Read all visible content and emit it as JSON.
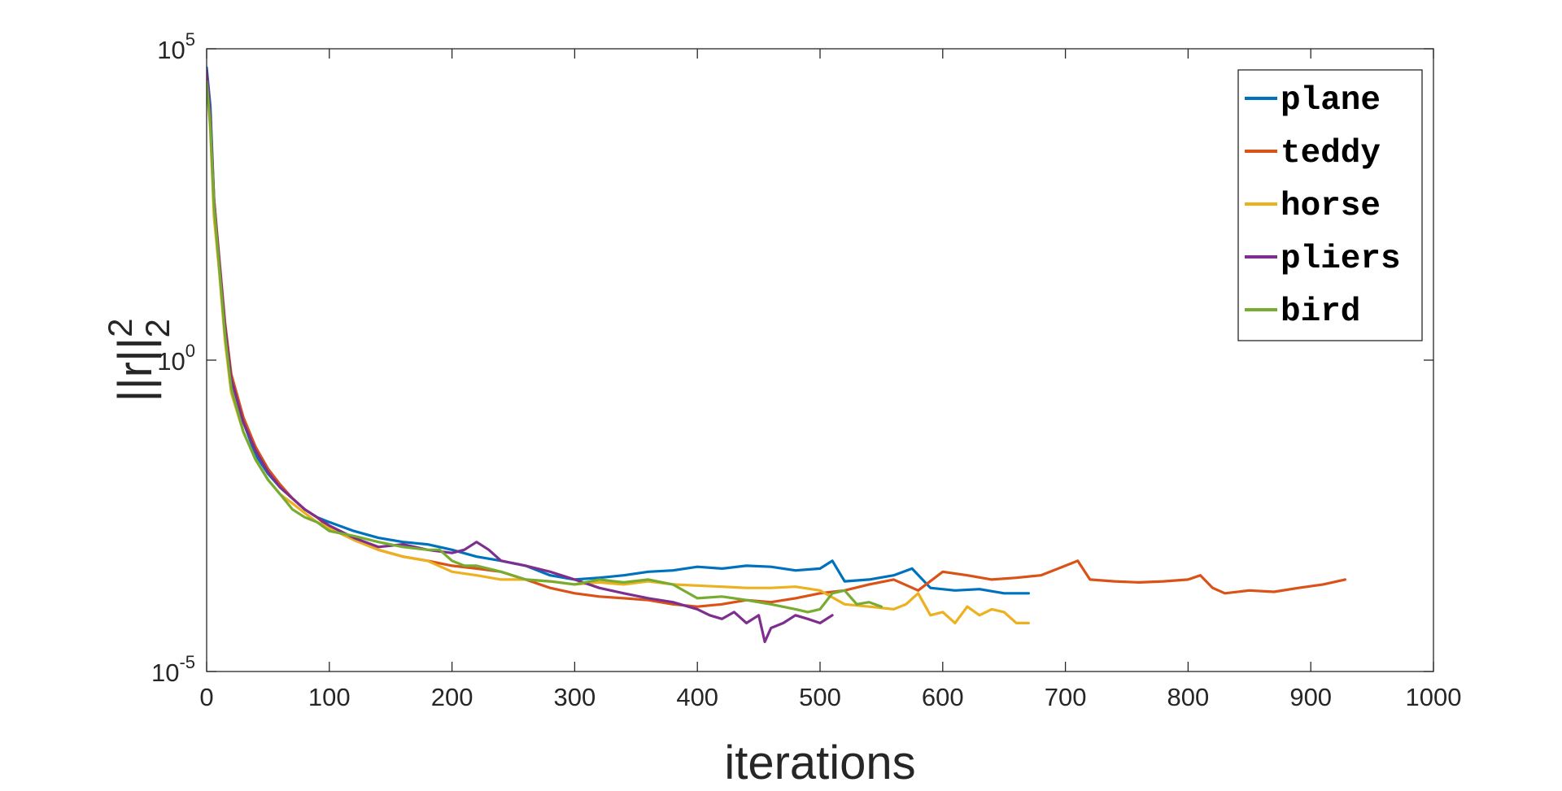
{
  "chart_data": {
    "type": "line",
    "title": "",
    "xlabel": "iterations",
    "ylabel": "||r||",
    "ylabel_superscript": "2",
    "ylabel_subscript": "2",
    "xlim": [
      0,
      1000
    ],
    "ylim": [
      1e-05,
      100000.0
    ],
    "yscale": "log",
    "grid": false,
    "legend_position": "top-right",
    "xticks": [
      {
        "value": 0,
        "label": "0"
      },
      {
        "value": 100,
        "label": "100"
      },
      {
        "value": 200,
        "label": "200"
      },
      {
        "value": 300,
        "label": "300"
      },
      {
        "value": 400,
        "label": "400"
      },
      {
        "value": 500,
        "label": "500"
      },
      {
        "value": 600,
        "label": "600"
      },
      {
        "value": 700,
        "label": "700"
      },
      {
        "value": 800,
        "label": "800"
      },
      {
        "value": 900,
        "label": "900"
      },
      {
        "value": 1000,
        "label": "1000"
      }
    ],
    "yticks": [
      {
        "value": 1e-05,
        "base": "10",
        "exp": "-5"
      },
      {
        "value": 1,
        "base": "10",
        "exp": "0"
      },
      {
        "value": 100000.0,
        "base": "10",
        "exp": "5"
      }
    ],
    "series": [
      {
        "name": "plane",
        "color": "#0072BD",
        "x": [
          0,
          3,
          6,
          10,
          15,
          20,
          30,
          40,
          50,
          60,
          70,
          80,
          90,
          100,
          120,
          140,
          160,
          180,
          200,
          220,
          240,
          260,
          280,
          300,
          320,
          340,
          360,
          380,
          400,
          420,
          440,
          460,
          480,
          500,
          510,
          520,
          540,
          560,
          575,
          590,
          610,
          630,
          650,
          670
        ],
        "y": [
          50000,
          12000,
          400,
          40,
          3,
          0.5,
          0.1,
          0.03,
          0.015,
          0.009,
          0.006,
          0.004,
          0.003,
          0.0025,
          0.0018,
          0.0014,
          0.0012,
          0.0011,
          0.0009,
          0.0007,
          0.0006,
          0.0005,
          0.00035,
          0.0003,
          0.00032,
          0.00035,
          0.0004,
          0.00042,
          0.00048,
          0.00045,
          0.0005,
          0.00048,
          0.00042,
          0.00045,
          0.0006,
          0.00028,
          0.0003,
          0.00035,
          0.00045,
          0.00022,
          0.0002,
          0.00021,
          0.00018,
          0.00018
        ]
      },
      {
        "name": "teddy",
        "color": "#D95319",
        "x": [
          0,
          3,
          6,
          10,
          15,
          20,
          30,
          40,
          50,
          60,
          70,
          80,
          90,
          100,
          120,
          140,
          160,
          180,
          200,
          220,
          240,
          260,
          280,
          300,
          320,
          340,
          360,
          380,
          400,
          420,
          440,
          460,
          480,
          500,
          520,
          540,
          560,
          580,
          600,
          620,
          640,
          660,
          680,
          700,
          710,
          720,
          740,
          760,
          780,
          800,
          810,
          820,
          830,
          850,
          870,
          890,
          910,
          928
        ],
        "y": [
          40000,
          8000,
          400,
          50,
          4,
          0.6,
          0.12,
          0.04,
          0.018,
          0.01,
          0.006,
          0.004,
          0.003,
          0.002,
          0.0013,
          0.0009,
          0.0007,
          0.0006,
          0.0005,
          0.00045,
          0.0004,
          0.0003,
          0.00022,
          0.00018,
          0.00016,
          0.00015,
          0.00014,
          0.00012,
          0.00011,
          0.00012,
          0.00014,
          0.00013,
          0.00015,
          0.00018,
          0.0002,
          0.00025,
          0.0003,
          0.0002,
          0.0004,
          0.00035,
          0.0003,
          0.00032,
          0.00035,
          0.0005,
          0.0006,
          0.0003,
          0.00028,
          0.00027,
          0.00028,
          0.0003,
          0.00035,
          0.00022,
          0.00018,
          0.0002,
          0.00019,
          0.00022,
          0.00025,
          0.0003
        ]
      },
      {
        "name": "horse",
        "color": "#EDB120",
        "x": [
          0,
          3,
          6,
          10,
          15,
          20,
          30,
          40,
          50,
          60,
          70,
          80,
          90,
          100,
          120,
          140,
          160,
          180,
          200,
          220,
          240,
          260,
          280,
          300,
          320,
          340,
          360,
          380,
          400,
          420,
          440,
          460,
          480,
          500,
          520,
          540,
          560,
          570,
          580,
          590,
          600,
          610,
          620,
          630,
          640,
          650,
          660,
          670
        ],
        "y": [
          35000,
          5000,
          200,
          30,
          2,
          0.3,
          0.07,
          0.025,
          0.012,
          0.007,
          0.005,
          0.0035,
          0.0025,
          0.002,
          0.0013,
          0.0009,
          0.0007,
          0.0006,
          0.0004,
          0.00035,
          0.0003,
          0.0003,
          0.00028,
          0.00025,
          0.00027,
          0.00025,
          0.00028,
          0.00025,
          0.00024,
          0.00023,
          0.00022,
          0.00022,
          0.00023,
          0.0002,
          0.00012,
          0.00011,
          0.0001,
          0.00012,
          0.00018,
          8e-05,
          9e-05,
          6e-05,
          0.00011,
          8e-05,
          0.0001,
          9e-05,
          6e-05,
          6e-05
        ]
      },
      {
        "name": "pliers",
        "color": "#7E2F8E",
        "x": [
          0,
          3,
          6,
          10,
          15,
          20,
          30,
          40,
          50,
          60,
          70,
          80,
          90,
          100,
          120,
          140,
          160,
          180,
          200,
          210,
          220,
          230,
          240,
          260,
          280,
          300,
          320,
          340,
          360,
          380,
          400,
          410,
          420,
          430,
          440,
          450,
          455,
          460,
          470,
          480,
          490,
          500,
          510
        ],
        "y": [
          45000,
          9000,
          350,
          45,
          3.5,
          0.5,
          0.1,
          0.035,
          0.016,
          0.009,
          0.006,
          0.004,
          0.003,
          0.0022,
          0.0014,
          0.001,
          0.0011,
          0.0009,
          0.0008,
          0.0009,
          0.0012,
          0.0009,
          0.0006,
          0.0005,
          0.0004,
          0.0003,
          0.00022,
          0.00018,
          0.00015,
          0.00013,
          0.0001,
          8e-05,
          7e-05,
          9e-05,
          6e-05,
          8e-05,
          3e-05,
          5e-05,
          6e-05,
          8e-05,
          7e-05,
          6e-05,
          8e-05
        ]
      },
      {
        "name": "bird",
        "color": "#77AC30",
        "x": [
          0,
          3,
          6,
          10,
          15,
          20,
          30,
          40,
          50,
          60,
          70,
          80,
          90,
          100,
          120,
          140,
          160,
          180,
          190,
          200,
          210,
          220,
          240,
          260,
          280,
          300,
          320,
          340,
          360,
          380,
          400,
          420,
          440,
          460,
          480,
          490,
          500,
          510,
          520,
          530,
          540,
          550
        ],
        "y": [
          30000,
          6000,
          300,
          35,
          2.5,
          0.35,
          0.07,
          0.025,
          0.012,
          0.007,
          0.004,
          0.003,
          0.0025,
          0.0018,
          0.0015,
          0.0012,
          0.001,
          0.0009,
          0.0009,
          0.0006,
          0.0005,
          0.0005,
          0.0004,
          0.0003,
          0.00028,
          0.00025,
          0.0003,
          0.00027,
          0.0003,
          0.00025,
          0.00015,
          0.00016,
          0.00014,
          0.00012,
          0.0001,
          9e-05,
          0.0001,
          0.00018,
          0.0002,
          0.00012,
          0.00013,
          0.00011
        ]
      }
    ]
  }
}
